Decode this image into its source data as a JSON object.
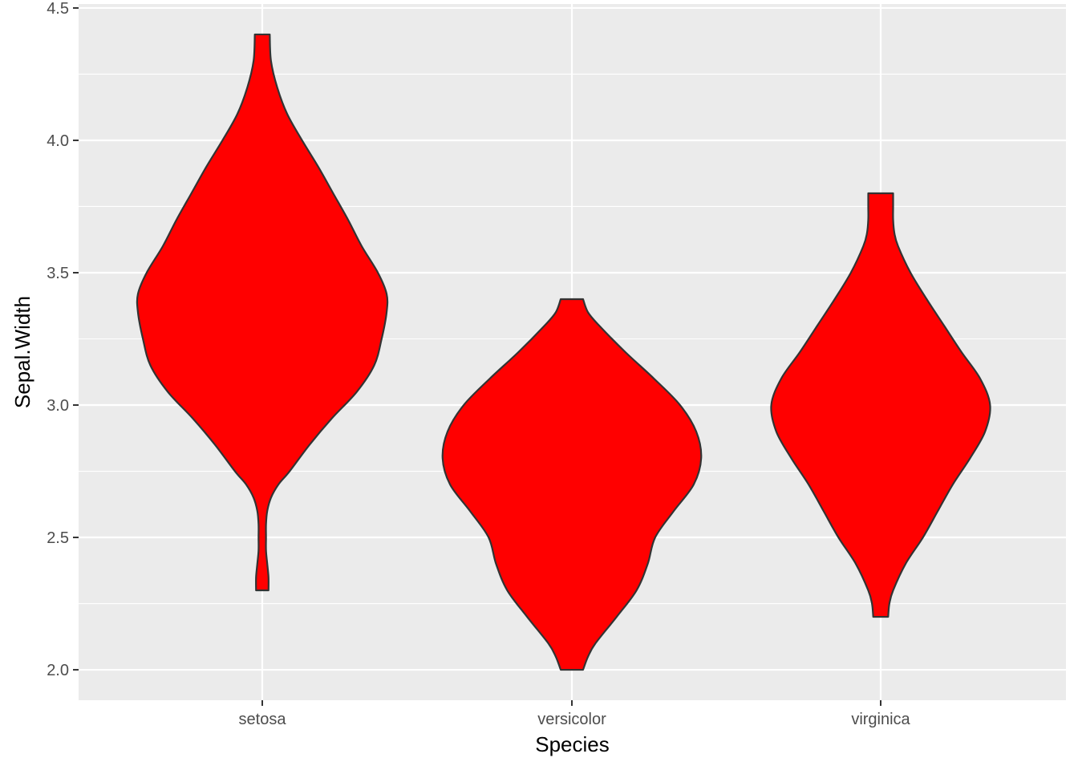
{
  "chart_data": {
    "type": "violin",
    "xlabel": "Species",
    "ylabel": "Sepal.Width",
    "categories": [
      "setosa",
      "versicolor",
      "virginica"
    ],
    "ylim": [
      1.885,
      4.515
    ],
    "y_ticks": [
      2.0,
      2.5,
      3.0,
      3.5,
      4.0,
      4.5
    ],
    "y_tick_labels": [
      "2.0",
      "2.5",
      "3.0",
      "3.5",
      "4.0",
      "4.5"
    ],
    "grid": true,
    "legend": "none",
    "colors": {
      "panel_background": "#ebebeb",
      "grid": "#ffffff",
      "violin_fill": "#ff0000",
      "violin_outline": "#333333",
      "tick_label": "#4d4d4d",
      "axis_title": "#000000"
    },
    "violins": [
      {
        "category": "setosa",
        "min": 2.3,
        "max": 4.4,
        "density": [
          [
            2.3,
            0.05
          ],
          [
            2.35,
            0.05
          ],
          [
            2.4,
            0.04
          ],
          [
            2.45,
            0.03
          ],
          [
            2.5,
            0.03
          ],
          [
            2.55,
            0.03
          ],
          [
            2.6,
            0.04
          ],
          [
            2.65,
            0.07
          ],
          [
            2.7,
            0.13
          ],
          [
            2.75,
            0.22
          ],
          [
            2.85,
            0.38
          ],
          [
            2.95,
            0.56
          ],
          [
            3.05,
            0.76
          ],
          [
            3.15,
            0.9
          ],
          [
            3.25,
            0.96
          ],
          [
            3.35,
            1.0
          ],
          [
            3.42,
            1.0
          ],
          [
            3.5,
            0.93
          ],
          [
            3.6,
            0.8
          ],
          [
            3.7,
            0.69
          ],
          [
            3.8,
            0.57
          ],
          [
            3.9,
            0.45
          ],
          [
            4.0,
            0.32
          ],
          [
            4.1,
            0.2
          ],
          [
            4.2,
            0.12
          ],
          [
            4.3,
            0.07
          ],
          [
            4.4,
            0.06
          ]
        ]
      },
      {
        "category": "versicolor",
        "min": 2.0,
        "max": 3.4,
        "density": [
          [
            2.0,
            0.09
          ],
          [
            2.05,
            0.13
          ],
          [
            2.1,
            0.19
          ],
          [
            2.2,
            0.36
          ],
          [
            2.3,
            0.52
          ],
          [
            2.4,
            0.61
          ],
          [
            2.5,
            0.67
          ],
          [
            2.6,
            0.82
          ],
          [
            2.7,
            0.98
          ],
          [
            2.8,
            1.04
          ],
          [
            2.9,
            1.0
          ],
          [
            3.0,
            0.87
          ],
          [
            3.1,
            0.66
          ],
          [
            3.2,
            0.43
          ],
          [
            3.3,
            0.22
          ],
          [
            3.35,
            0.13
          ],
          [
            3.4,
            0.09
          ]
        ]
      },
      {
        "category": "virginica",
        "min": 2.2,
        "max": 3.8,
        "density": [
          [
            2.2,
            0.06
          ],
          [
            2.25,
            0.07
          ],
          [
            2.3,
            0.1
          ],
          [
            2.4,
            0.2
          ],
          [
            2.5,
            0.34
          ],
          [
            2.6,
            0.46
          ],
          [
            2.7,
            0.58
          ],
          [
            2.8,
            0.72
          ],
          [
            2.9,
            0.84
          ],
          [
            3.0,
            0.88
          ],
          [
            3.1,
            0.8
          ],
          [
            3.2,
            0.65
          ],
          [
            3.3,
            0.51
          ],
          [
            3.4,
            0.37
          ],
          [
            3.5,
            0.24
          ],
          [
            3.6,
            0.14
          ],
          [
            3.65,
            0.11
          ],
          [
            3.7,
            0.1
          ],
          [
            3.75,
            0.1
          ],
          [
            3.8,
            0.1
          ]
        ]
      }
    ]
  }
}
